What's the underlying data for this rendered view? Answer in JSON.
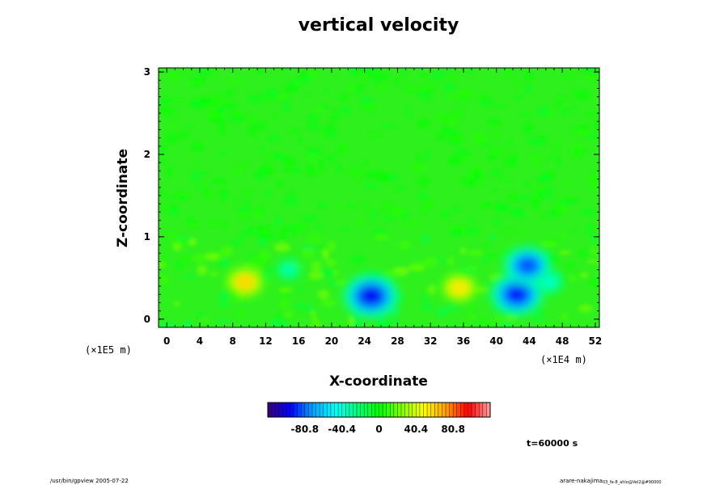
{
  "chart_data": {
    "type": "heatmap",
    "title": "vertical velocity",
    "xlabel": "X-coordinate",
    "ylabel": "Z-coordinate",
    "x_ticks": [
      "0",
      "4",
      "8",
      "12",
      "16",
      "20",
      "24",
      "28",
      "32",
      "36",
      "40",
      "44",
      "48",
      "52"
    ],
    "x_tick_values": [
      0,
      4,
      8,
      12,
      16,
      20,
      24,
      28,
      32,
      36,
      40,
      44,
      48,
      52
    ],
    "xlim": [
      -1,
      52.5
    ],
    "x_scale_note": "(×1E4 m)",
    "z_ticks": [
      "0",
      "1",
      "2",
      "3"
    ],
    "z_tick_values": [
      0,
      1,
      2,
      3
    ],
    "zlim": [
      -0.1,
      3.05
    ],
    "z_scale_note": "(×1E5 m)",
    "colorbar": {
      "min": -121.2,
      "max": 121.2,
      "tick_labels": [
        "-80.8",
        "-40.4",
        "0",
        "40.4",
        "80.8"
      ],
      "tick_values": [
        -80.8,
        -40.4,
        0,
        40.4,
        80.8
      ],
      "colors": [
        "#3a0078",
        "#0000ff",
        "#00a0ff",
        "#00ffff",
        "#00ff80",
        "#00ff00",
        "#80ff00",
        "#ffff00",
        "#ffa000",
        "#ff0000",
        "#ffa0a0"
      ]
    },
    "features": [
      {
        "x": 9.5,
        "z": 0.45,
        "value": 60
      },
      {
        "x": 35.5,
        "z": 0.38,
        "value": 55
      },
      {
        "x": 24.8,
        "z": 0.28,
        "value": -100
      },
      {
        "x": 42.5,
        "z": 0.3,
        "value": -95
      },
      {
        "x": 43.8,
        "z": 0.65,
        "value": -85
      },
      {
        "x": 14.8,
        "z": 0.6,
        "value": -35
      },
      {
        "x": 46.5,
        "z": 0.45,
        "value": -40
      }
    ],
    "time_label": "t=60000 s",
    "footer_left": "/usr/bin/gpview 2005-07-22",
    "footer_right_main": "arare-nakajima",
    "footer_right_sub": "03_fe-8_ahlo@Vel2@#90000"
  }
}
